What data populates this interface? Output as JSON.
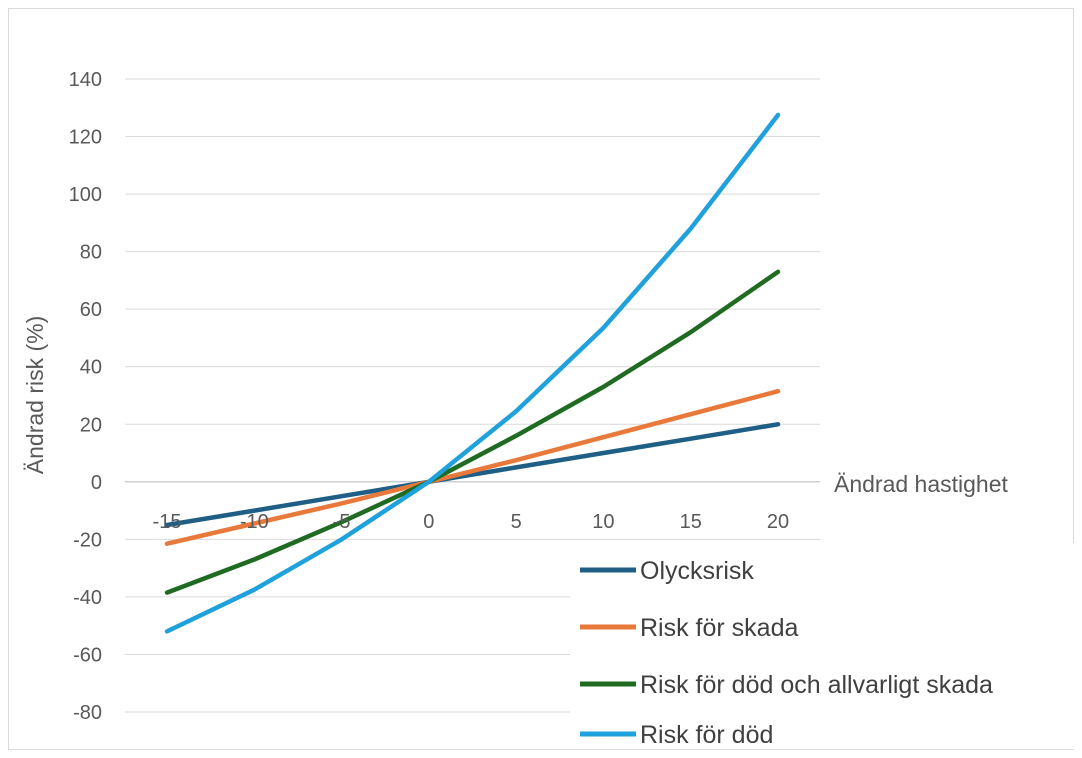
{
  "chart_data": {
    "type": "line",
    "title": "",
    "xlabel": "Ändrad hastighet",
    "ylabel": "Ändrad risk (%)",
    "x": [
      -15,
      -10,
      -5,
      0,
      5,
      10,
      15,
      20
    ],
    "x_tick_labels": [
      "-15",
      "-10",
      "-5",
      "0",
      "5",
      "10",
      "15",
      "20"
    ],
    "ylim": [
      -80,
      140
    ],
    "y_ticks": [
      140,
      120,
      100,
      80,
      60,
      40,
      20,
      0,
      -20,
      -40,
      -60,
      -80
    ],
    "y_tick_labels": [
      "140",
      "120",
      "100",
      "80",
      "60",
      "40",
      "20",
      "0",
      "-20",
      "-40",
      "-60",
      "-80"
    ],
    "grid": true,
    "legend_position": "bottom-right",
    "series": [
      {
        "name": "Olycksrisk",
        "color": "#1f5f86",
        "values": [
          -15,
          -10,
          -5,
          0,
          5,
          10,
          15,
          20
        ]
      },
      {
        "name": "Risk för skada",
        "color": "#e8793a",
        "values": [
          -21.5,
          -14.5,
          -7.5,
          0,
          7.5,
          15.5,
          23.5,
          31.5
        ]
      },
      {
        "name": "Risk för död och allvarligt skada",
        "color": "#1f6b22",
        "values": [
          -38.5,
          -27,
          -14,
          0,
          16,
          33,
          52,
          73
        ]
      },
      {
        "name": "Risk för död",
        "color": "#1ea1dc",
        "values": [
          -52,
          -37.5,
          -20,
          0,
          24.5,
          53.5,
          88,
          127.5
        ]
      }
    ]
  }
}
